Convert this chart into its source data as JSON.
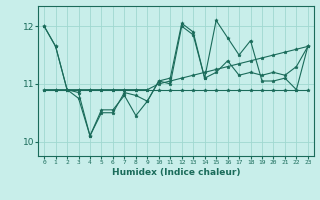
{
  "xlabel": "Humidex (Indice chaleur)",
  "ylabel": "",
  "xlim": [
    -0.5,
    23.5
  ],
  "ylim": [
    9.75,
    12.35
  ],
  "yticks": [
    10,
    11,
    12
  ],
  "xticks": [
    0,
    1,
    2,
    3,
    4,
    5,
    6,
    7,
    8,
    9,
    10,
    11,
    12,
    13,
    14,
    15,
    16,
    17,
    18,
    19,
    20,
    21,
    22,
    23
  ],
  "bg_color": "#c8eeea",
  "line_color": "#1a6b5a",
  "grid_color": "#a0d8d0",
  "series": [
    [
      12.0,
      11.65,
      10.9,
      10.85,
      10.1,
      10.5,
      10.5,
      10.85,
      10.8,
      10.7,
      11.05,
      11.0,
      12.0,
      11.85,
      11.1,
      12.1,
      11.8,
      11.5,
      11.75,
      11.05,
      11.05,
      11.1,
      10.9,
      11.65
    ],
    [
      10.9,
      10.9,
      10.9,
      10.9,
      10.9,
      10.9,
      10.9,
      10.9,
      10.9,
      10.9,
      10.9,
      10.9,
      10.9,
      10.9,
      10.9,
      10.9,
      10.9,
      10.9,
      10.9,
      10.9,
      10.9,
      10.9,
      10.9,
      10.9
    ],
    [
      12.0,
      11.65,
      10.9,
      10.75,
      10.1,
      10.55,
      10.55,
      10.8,
      10.45,
      10.7,
      11.05,
      11.1,
      12.05,
      11.9,
      11.1,
      11.2,
      11.4,
      11.15,
      11.2,
      11.15,
      11.2,
      11.15,
      11.3,
      11.65
    ],
    [
      10.9,
      10.9,
      10.9,
      10.9,
      10.9,
      10.9,
      10.9,
      10.9,
      10.9,
      10.9,
      11.0,
      11.05,
      11.1,
      11.15,
      11.2,
      11.25,
      11.3,
      11.35,
      11.4,
      11.45,
      11.5,
      11.55,
      11.6,
      11.65
    ]
  ]
}
